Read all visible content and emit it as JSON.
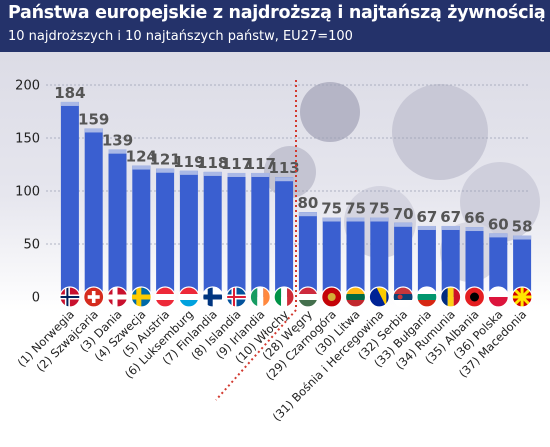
{
  "header": {
    "title": "Państwa europejskie z najdroższą i najtańszą żywnością ogółem",
    "subtitle": "10 najdroższych i 10 najtańszych państw, EU27=100"
  },
  "colors": {
    "header_bg": "#24326a",
    "bar": "#3a5fd0",
    "bar_top": "#a9b8e6",
    "divider": "#d23a30",
    "background_photo": "#dcdce6"
  },
  "chart_data": {
    "type": "bar",
    "title": "Państwa europejskie z najdroższą i najtańszą żywnością ogółem",
    "subtitle": "10 najdroższych i 10 najtańszych państw, EU27=100",
    "categories": [
      "(1) Norwegia",
      "(2) Szwajcaria",
      "(3) Dania",
      "(4) Szwecja",
      "(5) Austria",
      "(6) Luksemburg",
      "(7) Finlandia",
      "(8) Islandia",
      "(9) Irlandia",
      "(10) Włochy",
      "(28) Węgry",
      "(29) Czarnogóra",
      "(30) Litwa",
      "(31) Bośnia i Hercegowina",
      "(32) Serbia",
      "(33) Bułgaria",
      "(34) Rumunia",
      "(35) Albania",
      "(36) Polska",
      "(37) Macedonia"
    ],
    "values": [
      184,
      159,
      139,
      124,
      121,
      119,
      118,
      117,
      117,
      113,
      80,
      75,
      75,
      75,
      70,
      67,
      67,
      66,
      60,
      58
    ],
    "data_labels": [
      "184",
      "159",
      "139",
      "124",
      "121",
      "119",
      "118",
      "117",
      "117",
      "113",
      "80",
      "75",
      "75",
      "75",
      "70",
      "67",
      "67",
      "66",
      "60",
      "58"
    ],
    "flags": [
      "flag-norway",
      "flag-switzerland",
      "flag-denmark",
      "flag-sweden",
      "flag-austria",
      "flag-luxembourg",
      "flag-finland",
      "flag-iceland",
      "flag-ireland",
      "flag-italy",
      "flag-hungary",
      "flag-montenegro",
      "flag-lithuania",
      "flag-bosnia",
      "flag-serbia",
      "flag-bulgaria",
      "flag-romania",
      "flag-albania",
      "flag-poland",
      "flag-macedonia"
    ],
    "ylim": [
      0,
      200
    ],
    "yticks": [
      0,
      50,
      100,
      150,
      200
    ],
    "ytick_labels": [
      "0",
      "50",
      "100",
      "150",
      "200"
    ],
    "grid": true,
    "divider_after_index": 9,
    "xlabel": "",
    "ylabel": ""
  }
}
